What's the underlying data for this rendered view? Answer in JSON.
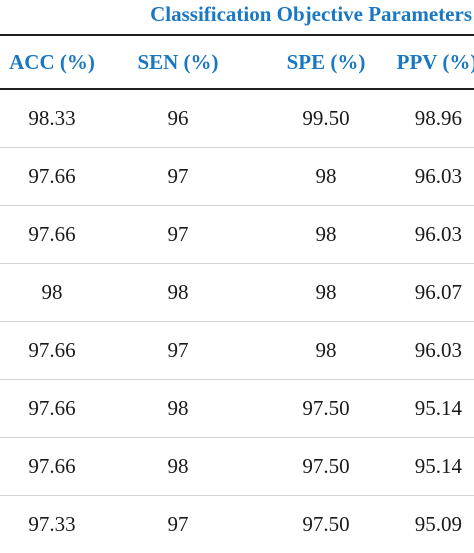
{
  "table": {
    "title": "Classification Objective Parameters",
    "headers": [
      "ACC (%)",
      "SEN (%)",
      "SPE (%)",
      "PPV (%)"
    ],
    "rows": [
      [
        "98.33",
        "96",
        "99.50",
        "98.96"
      ],
      [
        "97.66",
        "97",
        "98",
        "96.03"
      ],
      [
        "97.66",
        "97",
        "98",
        "96.03"
      ],
      [
        "98",
        "98",
        "98",
        "96.07"
      ],
      [
        "97.66",
        "97",
        "98",
        "96.03"
      ],
      [
        "97.66",
        "98",
        "97.50",
        "95.14"
      ],
      [
        "97.66",
        "98",
        "97.50",
        "95.14"
      ],
      [
        "97.33",
        "97",
        "97.50",
        "95.09"
      ]
    ]
  },
  "colors": {
    "header_text": "#1a77c2",
    "body_text": "#1a1a1a",
    "rule": "#1f1f1f",
    "row_divider": "#d4d4d4"
  }
}
